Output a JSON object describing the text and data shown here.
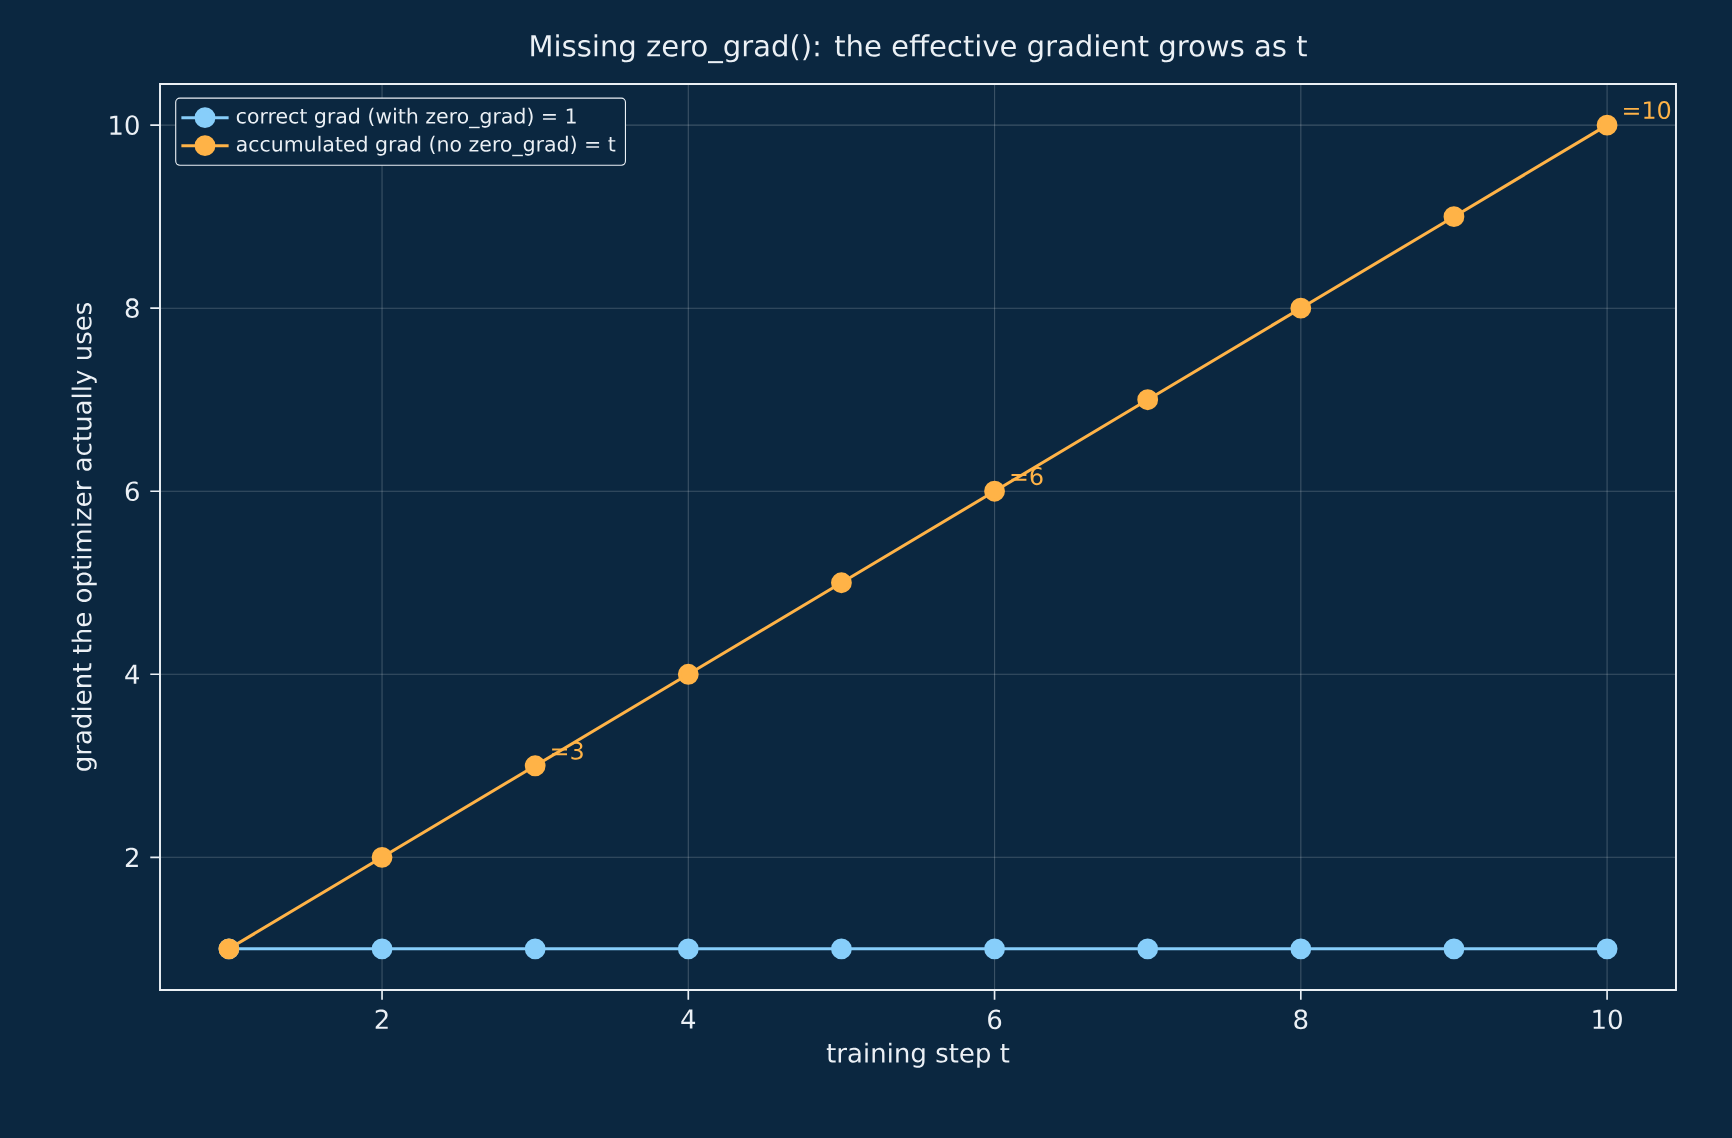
{
  "chart_data": {
    "type": "line",
    "title": "Missing zero_grad(): the effective gradient grows as t",
    "xlabel": "training step  t",
    "ylabel": "gradient the optimizer actually uses",
    "x": [
      1,
      2,
      3,
      4,
      5,
      6,
      7,
      8,
      9,
      10
    ],
    "series": [
      {
        "name": "correct grad (with zero_grad) = 1",
        "color": "#87cefa",
        "values": [
          1,
          1,
          1,
          1,
          1,
          1,
          1,
          1,
          1,
          1
        ]
      },
      {
        "name": "accumulated grad (no zero_grad) = t",
        "color": "#ffb347",
        "values": [
          1,
          2,
          3,
          4,
          5,
          6,
          7,
          8,
          9,
          10
        ]
      }
    ],
    "annotations": [
      {
        "text": "=3",
        "x": 3,
        "y": 3
      },
      {
        "text": "=6",
        "x": 6,
        "y": 6
      },
      {
        "text": "=10",
        "x": 10,
        "y": 10
      }
    ],
    "xlim": [
      0.55,
      10.45
    ],
    "ylim": [
      0.55,
      10.45
    ],
    "xticks": [
      2,
      4,
      6,
      8,
      10
    ],
    "yticks": [
      2,
      4,
      6,
      8,
      10
    ],
    "grid": true,
    "legend": "top left",
    "marker": "circle",
    "line_style": "solid"
  }
}
